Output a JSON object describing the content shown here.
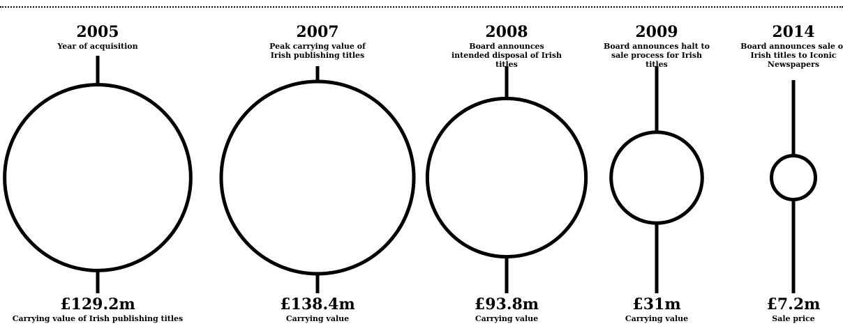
{
  "chart_data": {
    "type": "bubble",
    "unit": "£m",
    "events": [
      {
        "year": "2005",
        "caption": "Year of acquisition",
        "value": 129.2,
        "value_label": "£129.2m",
        "value_caption": "Carrying value of Irish publishing titles"
      },
      {
        "year": "2007",
        "caption": "Peak carrying value of Irish publishing titles",
        "value": 138.4,
        "value_label": "£138.4m",
        "value_caption": "Carrying value"
      },
      {
        "year": "2008",
        "caption": "Board announces intended disposal of Irish titles",
        "value": 93.8,
        "value_label": "£93.8m",
        "value_caption": "Carrying value"
      },
      {
        "year": "2009",
        "caption": "Board announces halt to sale process for Irish titles",
        "value": 31,
        "value_label": "£31m",
        "value_caption": "Carrying value"
      },
      {
        "year": "2014",
        "caption": "Board announces sale of Irish titles to Iconic Newspapers",
        "value": 7.2,
        "value_label": "£7.2m",
        "value_caption": "Sale price"
      }
    ]
  },
  "colors": {
    "stroke": "#000000",
    "background": "#ffffff"
  }
}
